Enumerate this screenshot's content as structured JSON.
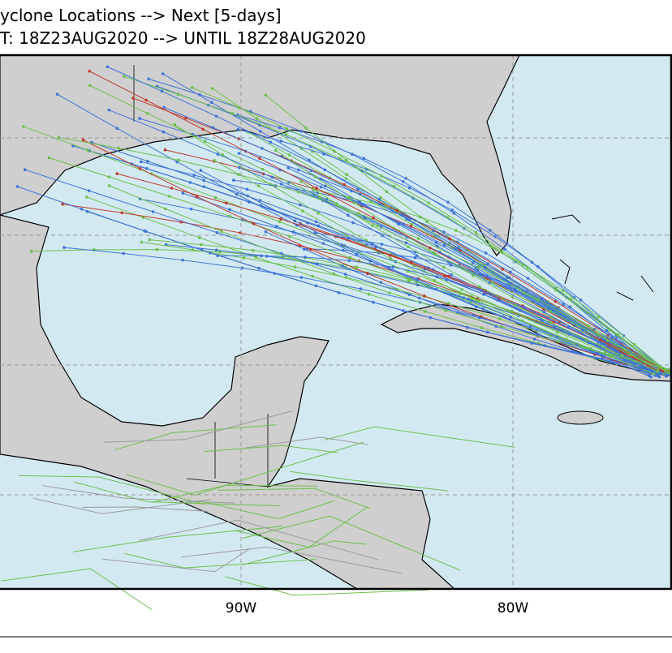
{
  "header": {
    "line1": "yclone Locations --> Next [5-days]",
    "line2": "T: 18Z23AUG2020 --> UNTIL 18Z28AUG2020"
  },
  "map": {
    "lon_labels": [
      "90W",
      "80W"
    ]
  }
}
